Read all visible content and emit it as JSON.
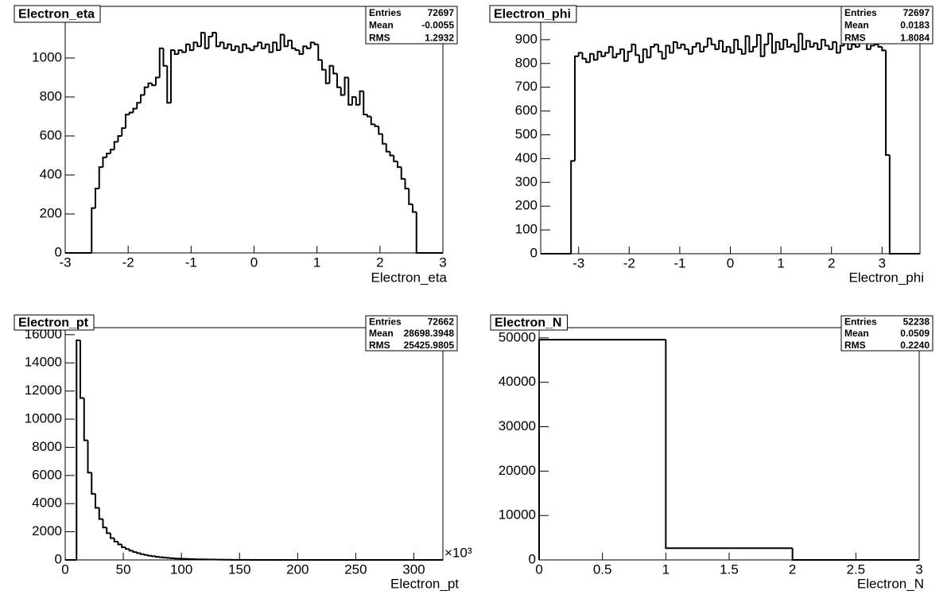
{
  "chart_data": [
    {
      "type": "histogram",
      "title": "Electron_eta",
      "xlabel": "Electron_eta",
      "stats": [
        {
          "name": "Entries",
          "value": "72697"
        },
        {
          "name": "Mean",
          "value": "-0.0055"
        },
        {
          "name": "RMS",
          "value": "1.2932"
        }
      ],
      "bins": [
        -3,
        -2.94,
        -2.88,
        -2.82,
        -2.76,
        -2.7,
        -2.64,
        -2.58,
        -2.52,
        -2.46,
        -2.4,
        -2.34,
        -2.28,
        -2.22,
        -2.16,
        -2.1,
        -2.04,
        -1.98,
        -1.92,
        -1.86,
        -1.8,
        -1.74,
        -1.68,
        -1.62,
        -1.56,
        -1.5,
        -1.44,
        -1.38,
        -1.32,
        -1.26,
        -1.2,
        -1.14,
        -1.08,
        -1.02,
        -0.96,
        -0.9,
        -0.84,
        -0.78,
        -0.72,
        -0.66,
        -0.6,
        -0.54,
        -0.48,
        -0.42,
        -0.36,
        -0.3,
        -0.24,
        -0.18,
        -0.12,
        -0.06,
        0,
        0.06,
        0.12,
        0.18,
        0.24,
        0.3,
        0.36,
        0.42,
        0.48,
        0.54,
        0.6,
        0.66,
        0.72,
        0.78,
        0.84,
        0.9,
        0.96,
        1.02,
        1.08,
        1.14,
        1.2,
        1.26,
        1.32,
        1.38,
        1.44,
        1.5,
        1.56,
        1.62,
        1.68,
        1.74,
        1.8,
        1.86,
        1.92,
        1.98,
        2.04,
        2.1,
        2.16,
        2.22,
        2.28,
        2.34,
        2.4,
        2.46,
        2.52,
        2.58,
        2.64,
        2.7,
        2.76,
        2.82,
        2.88,
        2.94,
        3
      ],
      "values": [
        0,
        0,
        0,
        0,
        0,
        0,
        0,
        230,
        330,
        440,
        490,
        510,
        530,
        570,
        600,
        640,
        710,
        720,
        740,
        770,
        810,
        850,
        870,
        860,
        900,
        1050,
        960,
        770,
        1040,
        1020,
        1040,
        1030,
        1070,
        1040,
        1080,
        1060,
        1130,
        1050,
        1110,
        1130,
        1060,
        1080,
        1050,
        1070,
        1040,
        1060,
        1030,
        1070,
        1050,
        1040,
        1060,
        1080,
        1050,
        1070,
        1030,
        1080,
        1040,
        1120,
        1060,
        1090,
        1050,
        1040,
        1020,
        1060,
        1050,
        1080,
        1070,
        990,
        940,
        870,
        960,
        920,
        850,
        810,
        900,
        760,
        800,
        760,
        830,
        710,
        700,
        660,
        650,
        610,
        560,
        520,
        500,
        470,
        440,
        380,
        330,
        250,
        210,
        0,
        0,
        0,
        0,
        0,
        0,
        0
      ],
      "color": "#000000",
      "xlim": [
        -3,
        3
      ],
      "xticks": [
        -3,
        -2,
        -1,
        0,
        1,
        2,
        3
      ],
      "ylim": [
        0,
        1265
      ],
      "yticks": [
        0,
        200,
        400,
        600,
        800,
        1000
      ]
    },
    {
      "type": "histogram",
      "title": "Electron_phi",
      "xlabel": "Electron_phi",
      "stats": [
        {
          "name": "Entries",
          "value": "72697"
        },
        {
          "name": "Mean",
          "value": "0.0183"
        },
        {
          "name": "RMS",
          "value": "1.8084"
        }
      ],
      "bins": [
        -3.75,
        -3.675,
        -3.6,
        -3.525,
        -3.45,
        -3.375,
        -3.3,
        -3.225,
        -3.15,
        -3.075,
        -3,
        -2.925,
        -2.85,
        -2.775,
        -2.7,
        -2.625,
        -2.55,
        -2.475,
        -2.4,
        -2.325,
        -2.25,
        -2.175,
        -2.1,
        -2.025,
        -1.95,
        -1.875,
        -1.8,
        -1.725,
        -1.65,
        -1.575,
        -1.5,
        -1.425,
        -1.35,
        -1.275,
        -1.2,
        -1.125,
        -1.05,
        -0.975,
        -0.9,
        -0.825,
        -0.75,
        -0.675,
        -0.6,
        -0.525,
        -0.45,
        -0.375,
        -0.3,
        -0.225,
        -0.15,
        -0.075,
        0,
        0.075,
        0.15,
        0.225,
        0.3,
        0.375,
        0.45,
        0.525,
        0.6,
        0.675,
        0.75,
        0.825,
        0.9,
        0.975,
        1.05,
        1.125,
        1.2,
        1.275,
        1.35,
        1.425,
        1.5,
        1.575,
        1.65,
        1.725,
        1.8,
        1.875,
        1.95,
        2.025,
        2.1,
        2.175,
        2.25,
        2.325,
        2.4,
        2.475,
        2.55,
        2.625,
        2.7,
        2.775,
        2.85,
        2.925,
        3,
        3.075,
        3.15,
        3.225,
        3.3,
        3.375,
        3.45,
        3.525,
        3.6,
        3.675,
        3.75
      ],
      "values": [
        0,
        0,
        0,
        0,
        0,
        0,
        0,
        0,
        390,
        830,
        845,
        820,
        805,
        840,
        815,
        850,
        830,
        845,
        870,
        825,
        840,
        860,
        810,
        850,
        880,
        835,
        805,
        860,
        825,
        870,
        880,
        850,
        820,
        875,
        845,
        890,
        865,
        880,
        860,
        840,
        870,
        885,
        850,
        870,
        905,
        880,
        860,
        895,
        850,
        870,
        845,
        900,
        860,
        840,
        915,
        850,
        870,
        920,
        830,
        880,
        925,
        845,
        890,
        860,
        900,
        870,
        880,
        850,
        925,
        860,
        895,
        870,
        885,
        860,
        900,
        875,
        860,
        890,
        845,
        875,
        920,
        860,
        880,
        870,
        885,
        890,
        860,
        875,
        880,
        870,
        855,
        415,
        0,
        0,
        0,
        0,
        0,
        0,
        0,
        0
      ],
      "color": "#000000",
      "xlim": [
        -3.75,
        3.75
      ],
      "xticks": [
        -3,
        -2,
        -1,
        0,
        1,
        2,
        3
      ],
      "ylim": [
        0,
        1040
      ],
      "yticks": [
        0,
        100,
        200,
        300,
        400,
        500,
        600,
        700,
        800,
        900
      ]
    },
    {
      "type": "histogram",
      "title": "Electron_pt",
      "xlabel": "Electron_pt",
      "x_multiplier": "×10³",
      "stats": [
        {
          "name": "Entries",
          "value": "72662"
        },
        {
          "name": "Mean",
          "value": "28698.3948"
        },
        {
          "name": "RMS",
          "value": "25425.9805"
        }
      ],
      "bins": [
        0,
        3.25,
        6.5,
        9.75,
        13,
        16.25,
        19.5,
        22.75,
        26,
        29.25,
        32.5,
        35.75,
        39,
        42.25,
        45.5,
        48.75,
        52,
        55.25,
        58.5,
        61.75,
        65,
        68.25,
        71.5,
        74.75,
        78,
        81.25,
        84.5,
        87.75,
        91,
        94.25,
        97.5,
        100.75,
        104,
        107.25,
        110.5,
        113.75,
        117,
        120.25,
        123.5,
        126.75,
        130,
        133.25,
        136.5,
        139.75,
        143,
        146.25,
        149.5,
        152.75,
        156,
        159.25,
        162.5,
        165.75,
        169,
        172.25,
        175.5,
        178.75,
        182,
        185.25,
        188.5,
        191.75,
        195,
        198.25,
        201.5,
        204.75,
        208,
        211.25,
        214.5,
        217.75,
        221,
        224.25,
        227.5,
        230.75,
        234,
        237.25,
        240.5,
        243.75,
        247,
        250.25,
        253.5,
        256.75,
        260,
        263.25,
        266.5,
        269.75,
        273,
        276.25,
        279.5,
        282.75,
        286,
        289.25,
        292.5,
        295.75,
        299,
        302.25,
        305.5,
        308.75,
        312,
        315.25,
        318.5,
        321.75,
        325
      ],
      "values": [
        0,
        0,
        0,
        15600,
        11500,
        8500,
        6200,
        4700,
        3700,
        2900,
        2300,
        1900,
        1550,
        1300,
        1100,
        900,
        780,
        660,
        560,
        480,
        410,
        350,
        300,
        260,
        220,
        190,
        160,
        140,
        120,
        100,
        90,
        80,
        70,
        60,
        50,
        45,
        40,
        35,
        30,
        25,
        20,
        18,
        15,
        12,
        10,
        8,
        6,
        5,
        4,
        3,
        3,
        2,
        2,
        1,
        1,
        0,
        0,
        0,
        0,
        0,
        0,
        0,
        0,
        0,
        0,
        0,
        0,
        0,
        0,
        0,
        0,
        0,
        0,
        0,
        0,
        0,
        0,
        0,
        0,
        0,
        0,
        0,
        0,
        0,
        0,
        0,
        0,
        0,
        0,
        0,
        0,
        0,
        0,
        0,
        0,
        0,
        0,
        0,
        0,
        0
      ],
      "color": "#000000",
      "xlim": [
        0,
        325
      ],
      "xticks": [
        0,
        50,
        100,
        150,
        200,
        250,
        300
      ],
      "ylim": [
        0,
        16500
      ],
      "yticks": [
        0,
        2000,
        4000,
        6000,
        8000,
        10000,
        12000,
        14000,
        16000
      ]
    },
    {
      "type": "histogram",
      "title": "Electron_N",
      "xlabel": "Electron_N",
      "stats": [
        {
          "name": "Entries",
          "value": "52238"
        },
        {
          "name": "Mean",
          "value": "0.0509"
        },
        {
          "name": "RMS",
          "value": "0.2240"
        }
      ],
      "bins": [
        0,
        1,
        2,
        3
      ],
      "values": [
        49600,
        2640,
        0
      ],
      "color": "#000000",
      "xlim": [
        0,
        3
      ],
      "xticks": [
        0,
        0.5,
        1,
        1.5,
        2,
        2.5,
        3
      ],
      "ylim": [
        0,
        52300
      ],
      "yticks": [
        0,
        10000,
        20000,
        30000,
        40000,
        50000
      ]
    }
  ]
}
